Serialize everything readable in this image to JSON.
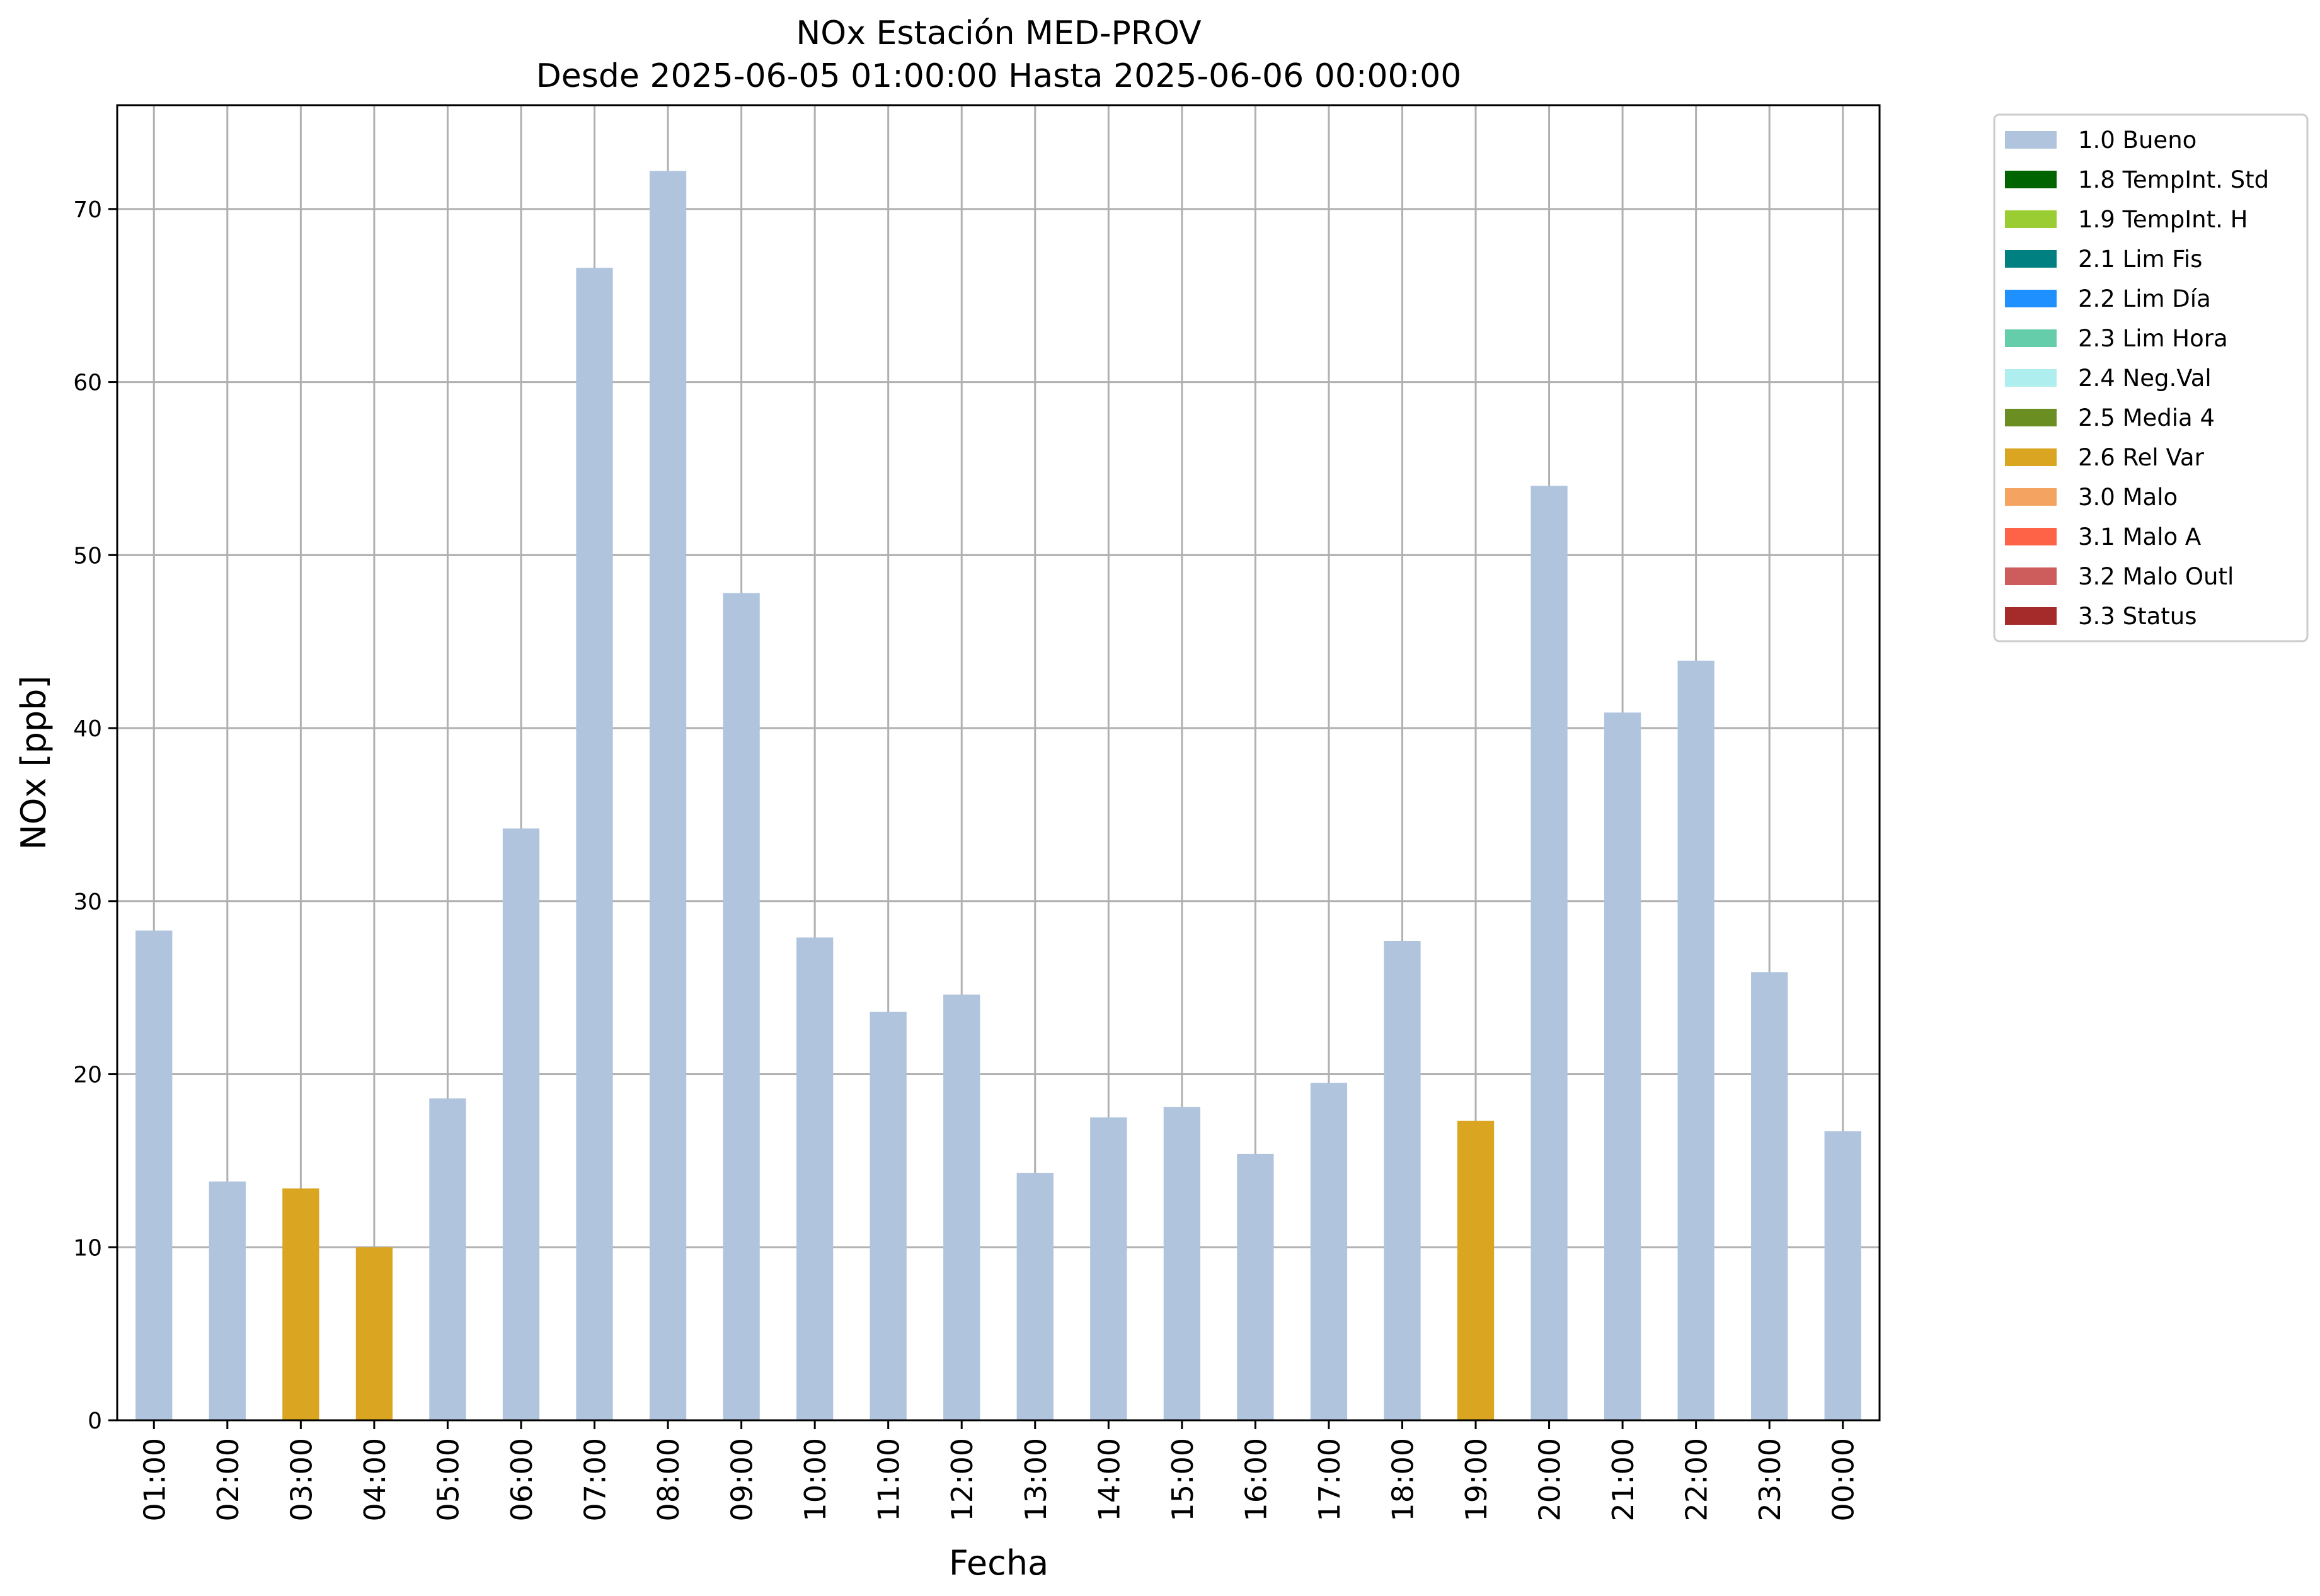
{
  "chart_data": {
    "type": "bar",
    "title": "NOx Estación MED-PROV",
    "subtitle": "Desde 2025-06-05 01:00:00 Hasta 2025-06-06 00:00:00",
    "xlabel": "Fecha",
    "ylabel": "NOx [ppb]",
    "ylim": [
      0,
      76
    ],
    "yticks": [
      0,
      10,
      20,
      30,
      40,
      50,
      60,
      70
    ],
    "grid": true,
    "legend_position": "outside-top-right",
    "categories": [
      "01:00",
      "02:00",
      "03:00",
      "04:00",
      "05:00",
      "06:00",
      "07:00",
      "08:00",
      "09:00",
      "10:00",
      "11:00",
      "12:00",
      "13:00",
      "14:00",
      "15:00",
      "16:00",
      "17:00",
      "18:00",
      "19:00",
      "20:00",
      "21:00",
      "22:00",
      "23:00",
      "00:00"
    ],
    "values": [
      28.3,
      13.8,
      13.4,
      10.0,
      18.6,
      34.2,
      66.6,
      72.2,
      47.8,
      27.9,
      23.6,
      24.6,
      14.3,
      17.5,
      18.1,
      15.4,
      19.5,
      27.7,
      17.3,
      54.0,
      40.9,
      43.9,
      25.9,
      16.7
    ],
    "flags": [
      "1.0 Bueno",
      "1.0 Bueno",
      "2.6 Rel Var",
      "2.6 Rel Var",
      "1.0 Bueno",
      "1.0 Bueno",
      "1.0 Bueno",
      "1.0 Bueno",
      "1.0 Bueno",
      "1.0 Bueno",
      "1.0 Bueno",
      "1.0 Bueno",
      "1.0 Bueno",
      "1.0 Bueno",
      "1.0 Bueno",
      "1.0 Bueno",
      "1.0 Bueno",
      "1.0 Bueno",
      "2.6 Rel Var",
      "1.0 Bueno",
      "1.0 Bueno",
      "1.0 Bueno",
      "1.0 Bueno",
      "1.0 Bueno"
    ],
    "legend": [
      {
        "label": "1.0 Bueno",
        "color": "#b0c4de"
      },
      {
        "label": "1.8 TempInt. Std",
        "color": "#006400"
      },
      {
        "label": "1.9 TempInt. H",
        "color": "#9acd32"
      },
      {
        "label": "2.1 Lim Fis",
        "color": "#008080"
      },
      {
        "label": "2.2 Lim Día",
        "color": "#1e90ff"
      },
      {
        "label": "2.3 Lim Hora",
        "color": "#66cdaa"
      },
      {
        "label": "2.4 Neg.Val",
        "color": "#afeeee"
      },
      {
        "label": "2.5 Media 4",
        "color": "#6b8e23"
      },
      {
        "label": "2.6 Rel Var",
        "color": "#daa520"
      },
      {
        "label": "3.0 Malo",
        "color": "#f4a460"
      },
      {
        "label": "3.1 Malo A",
        "color": "#ff6347"
      },
      {
        "label": "3.2 Malo Outl",
        "color": "#cd5c5c"
      },
      {
        "label": "3.3 Status",
        "color": "#a52a2a"
      }
    ]
  }
}
